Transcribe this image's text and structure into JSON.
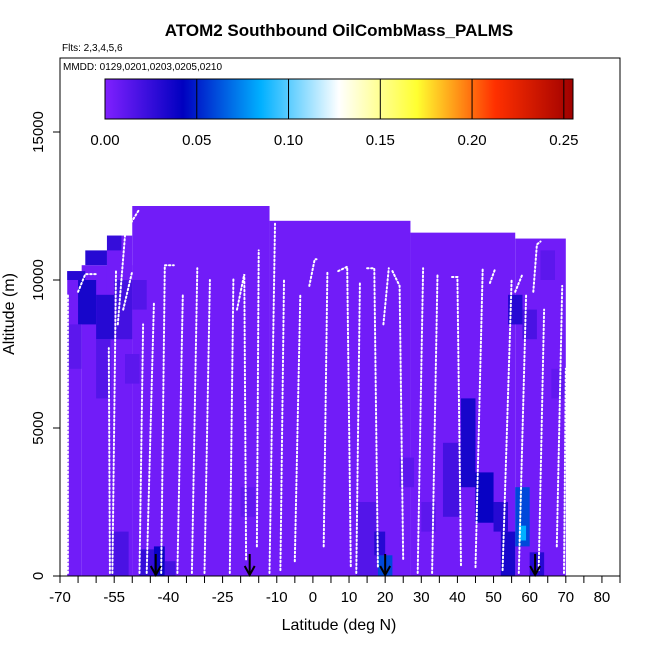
{
  "chart_data": {
    "type": "heatmap",
    "title": "ATOM2 Southbound OilCombMass_PALMS",
    "subtitle_flights": "Flts: 2,3,4,5,6",
    "subtitle_dates": "MMDD: 0129,0201,0203,0205,0210",
    "xlabel": "Latitude (deg N)",
    "ylabel": "Altitude (m)",
    "xlim": [
      -70,
      85
    ],
    "ylim": [
      0,
      17500
    ],
    "x_ticks": [
      -70,
      -55,
      -40,
      -25,
      -10,
      0,
      10,
      20,
      30,
      40,
      50,
      60,
      70,
      80
    ],
    "x_tick_labels": [
      "-70",
      "-55",
      "-40",
      "-25",
      "-10",
      "0",
      "10",
      "20",
      "30",
      "40",
      "50",
      "60",
      "70",
      "80"
    ],
    "x_minor_ticks": [
      -65,
      -60,
      -50,
      -45,
      -35,
      -30,
      -20,
      -15,
      -5,
      5,
      15,
      25,
      35,
      45,
      55,
      65,
      75,
      85
    ],
    "y_ticks": [
      0,
      5000,
      10000,
      15000
    ],
    "y_tick_labels": [
      "0",
      "5000",
      "10000",
      "15000"
    ],
    "colorbar": {
      "min": 0.0,
      "max": 0.255,
      "ticks": [
        0.0,
        0.05,
        0.1,
        0.15,
        0.2,
        0.25
      ],
      "tick_labels": [
        "0.00",
        "0.05",
        "0.10",
        "0.15",
        "0.20",
        "0.25"
      ],
      "colors": [
        "#8020ff",
        "#0000c0",
        "#00b0ff",
        "#ffffff",
        "#ffff30",
        "#ff3000",
        "#a00000"
      ]
    },
    "background_value": 0.005,
    "coverage_blocks": [
      {
        "lat0": -64,
        "lat1": -50,
        "alt0": 0,
        "alt1": 10500
      },
      {
        "lat0": -68,
        "lat1": -64,
        "alt0": 0,
        "alt1": 10300
      },
      {
        "lat0": -57,
        "lat1": -50,
        "alt0": 0,
        "alt1": 11500
      },
      {
        "lat0": -50,
        "lat1": -12,
        "alt0": 0,
        "alt1": 12500
      },
      {
        "lat0": -12,
        "lat1": 27,
        "alt0": 0,
        "alt1": 12000
      },
      {
        "lat0": 27,
        "lat1": 56,
        "alt0": 0,
        "alt1": 11600
      },
      {
        "lat0": 56,
        "lat1": 70,
        "alt0": 0,
        "alt1": 11400
      }
    ],
    "cells": [
      {
        "lat0": -68,
        "lat1": -63,
        "alt0": 10000,
        "alt1": 10300,
        "v": 0.03
      },
      {
        "lat0": -63,
        "lat1": -57,
        "alt0": 10500,
        "alt1": 11000,
        "v": 0.03
      },
      {
        "lat0": -57,
        "lat1": -53,
        "alt0": 11000,
        "alt1": 11500,
        "v": 0.025
      },
      {
        "lat0": -65,
        "lat1": -60,
        "alt0": 8500,
        "alt1": 10000,
        "v": 0.035
      },
      {
        "lat0": -60,
        "lat1": -55,
        "alt0": 8000,
        "alt1": 9500,
        "v": 0.03
      },
      {
        "lat0": -55,
        "lat1": -50,
        "alt0": 8000,
        "alt1": 10000,
        "v": 0.02
      },
      {
        "lat0": -50,
        "lat1": -46,
        "alt0": 9000,
        "alt1": 10000,
        "v": 0.015
      },
      {
        "lat0": -68,
        "lat1": -64,
        "alt0": 7000,
        "alt1": 8500,
        "v": 0.012
      },
      {
        "lat0": -60,
        "lat1": -56,
        "alt0": 6000,
        "alt1": 8000,
        "v": 0.015
      },
      {
        "lat0": -52,
        "lat1": -48,
        "alt0": 6500,
        "alt1": 7500,
        "v": 0.012
      },
      {
        "lat0": -56,
        "lat1": -51,
        "alt0": 0,
        "alt1": 1500,
        "v": 0.018
      },
      {
        "lat0": -48,
        "lat1": -44,
        "alt0": 0,
        "alt1": 900,
        "v": 0.025
      },
      {
        "lat0": -44,
        "lat1": -41,
        "alt0": 0,
        "alt1": 1000,
        "v": 0.04
      },
      {
        "lat0": -41,
        "lat1": -38,
        "alt0": 0,
        "alt1": 500,
        "v": 0.02
      },
      {
        "lat0": -20,
        "lat1": -16,
        "alt0": 2000,
        "alt1": 3000,
        "v": 0.01
      },
      {
        "lat0": 12,
        "lat1": 18,
        "alt0": 0,
        "alt1": 2500,
        "v": 0.015
      },
      {
        "lat0": 18,
        "lat1": 22,
        "alt0": 0,
        "alt1": 700,
        "v": 0.06
      },
      {
        "lat0": 17,
        "lat1": 20,
        "alt0": 700,
        "alt1": 1500,
        "v": 0.03
      },
      {
        "lat0": 24,
        "lat1": 28,
        "alt0": 3000,
        "alt1": 4000,
        "v": 0.012
      },
      {
        "lat0": 30,
        "lat1": 34,
        "alt0": 1500,
        "alt1": 2500,
        "v": 0.012
      },
      {
        "lat0": 36,
        "lat1": 41,
        "alt0": 2000,
        "alt1": 4500,
        "v": 0.02
      },
      {
        "lat0": 41,
        "lat1": 45,
        "alt0": 3000,
        "alt1": 6000,
        "v": 0.035
      },
      {
        "lat0": 45,
        "lat1": 50,
        "alt0": 1800,
        "alt1": 3500,
        "v": 0.04
      },
      {
        "lat0": 50,
        "lat1": 54,
        "alt0": 1500,
        "alt1": 2500,
        "v": 0.03
      },
      {
        "lat0": 52,
        "lat1": 56,
        "alt0": 0,
        "alt1": 1500,
        "v": 0.035
      },
      {
        "lat0": 56,
        "lat1": 60,
        "alt0": 1000,
        "alt1": 3000,
        "v": 0.06
      },
      {
        "lat0": 57,
        "lat1": 59,
        "alt0": 1200,
        "alt1": 1700,
        "v": 0.085
      },
      {
        "lat0": 60,
        "lat1": 64,
        "alt0": 0,
        "alt1": 800,
        "v": 0.03
      },
      {
        "lat0": 54,
        "lat1": 58,
        "alt0": 8500,
        "alt1": 9500,
        "v": 0.03
      },
      {
        "lat0": 58,
        "lat1": 62,
        "alt0": 8000,
        "alt1": 9000,
        "v": 0.018
      },
      {
        "lat0": 63,
        "lat1": 67,
        "alt0": 10000,
        "alt1": 11000,
        "v": 0.012
      },
      {
        "lat0": 66,
        "lat1": 70,
        "alt0": 6000,
        "alt1": 7000,
        "v": 0.01
      }
    ],
    "profiles": [
      {
        "lat": [
          -67.8,
          -67.8
        ],
        "alt": [
          100,
          9500
        ]
      },
      {
        "lat": [
          -65,
          -63,
          -60
        ],
        "alt": [
          9600,
          10200,
          10200
        ]
      },
      {
        "lat": [
          -56.2,
          -56.5
        ],
        "alt": [
          100,
          7700
        ]
      },
      {
        "lat": [
          -55.5,
          -54.5
        ],
        "alt": [
          100,
          10300
        ]
      },
      {
        "lat": [
          -54,
          -52
        ],
        "alt": [
          8500,
          11500
        ]
      },
      {
        "lat": [
          -52,
          -48
        ],
        "alt": [
          11600,
          12400
        ]
      },
      {
        "lat": [
          -52.5,
          -50
        ],
        "alt": [
          9000,
          10300
        ]
      },
      {
        "lat": [
          -48,
          -47
        ],
        "alt": [
          100,
          8500
        ]
      },
      {
        "lat": [
          -46,
          -44
        ],
        "alt": [
          100,
          9200
        ]
      },
      {
        "lat": [
          -42,
          -41,
          -38.5
        ],
        "alt": [
          100,
          10500,
          10500
        ]
      },
      {
        "lat": [
          -37.5,
          -36
        ],
        "alt": [
          100,
          9500
        ]
      },
      {
        "lat": [
          -33.5,
          -32
        ],
        "alt": [
          100,
          10400
        ]
      },
      {
        "lat": [
          -30,
          -28.5
        ],
        "alt": [
          100,
          10000
        ]
      },
      {
        "lat": [
          -23,
          -22
        ],
        "alt": [
          100,
          10050
        ]
      },
      {
        "lat": [
          -21,
          -19,
          -18.5
        ],
        "alt": [
          9000,
          10200,
          500
        ]
      },
      {
        "lat": [
          -15.5,
          -15
        ],
        "alt": [
          1000,
          11000
        ]
      },
      {
        "lat": [
          -12,
          -10.5
        ],
        "alt": [
          100,
          11900
        ]
      },
      {
        "lat": [
          -9,
          -8
        ],
        "alt": [
          200,
          10000
        ]
      },
      {
        "lat": [
          -5,
          -3.5
        ],
        "alt": [
          500,
          9500
        ]
      },
      {
        "lat": [
          -1,
          0.5,
          1
        ],
        "alt": [
          9800,
          10700,
          10700
        ]
      },
      {
        "lat": [
          3,
          4
        ],
        "alt": [
          1000,
          10300
        ]
      },
      {
        "lat": [
          7,
          9.5,
          10.5
        ],
        "alt": [
          10300,
          10450,
          300
        ]
      },
      {
        "lat": [
          12,
          13
        ],
        "alt": [
          100,
          9900
        ]
      },
      {
        "lat": [
          15,
          17,
          18
        ],
        "alt": [
          10400,
          10400,
          300
        ]
      },
      {
        "lat": [
          19.5,
          21
        ],
        "alt": [
          8500,
          10400
        ]
      },
      {
        "lat": [
          22,
          24,
          25
        ],
        "alt": [
          10300,
          9800,
          500
        ]
      },
      {
        "lat": [
          29,
          30.5
        ],
        "alt": [
          100,
          10400
        ]
      },
      {
        "lat": [
          33,
          34.5
        ],
        "alt": [
          100,
          10200
        ]
      },
      {
        "lat": [
          38.5,
          40,
          41
        ],
        "alt": [
          10100,
          10100,
          300
        ]
      },
      {
        "lat": [
          45,
          47
        ],
        "alt": [
          300,
          10400
        ]
      },
      {
        "lat": [
          49,
          50.5
        ],
        "alt": [
          9900,
          10400
        ]
      },
      {
        "lat": [
          52.5,
          55
        ],
        "alt": [
          200,
          10000
        ]
      },
      {
        "lat": [
          56,
          58
        ],
        "alt": [
          9600,
          10200
        ]
      },
      {
        "lat": [
          57,
          59
        ],
        "alt": [
          100,
          9500
        ]
      },
      {
        "lat": [
          61,
          62,
          63
        ],
        "alt": [
          9600,
          11200,
          11300
        ]
      },
      {
        "lat": [
          62.5,
          64
        ],
        "alt": [
          200,
          9000
        ]
      },
      {
        "lat": [
          67.5,
          69
        ],
        "alt": [
          1000,
          9800
        ]
      },
      {
        "lat": [
          69.5,
          70
        ],
        "alt": [
          100,
          7000
        ]
      }
    ],
    "arrows_lat": [
      -43.5,
      -17.5,
      20,
      61.5
    ]
  }
}
